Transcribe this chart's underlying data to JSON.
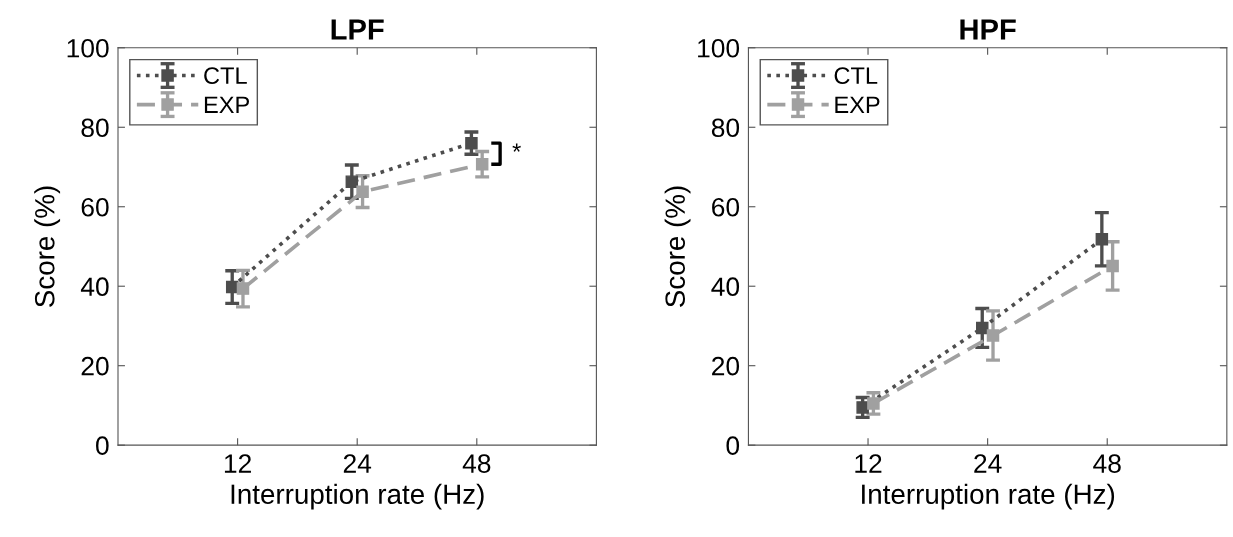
{
  "chart_data": [
    {
      "type": "line",
      "title": "LPF",
      "xlabel": "Interruption rate (Hz)",
      "ylabel": "Score (%)",
      "categories": [
        "12",
        "24",
        "48"
      ],
      "ylim": [
        0,
        100
      ],
      "yticks": [
        0,
        20,
        40,
        60,
        80,
        100
      ],
      "grid": false,
      "legend": "top left",
      "marker": "square",
      "annotations": [
        "*"
      ],
      "series": [
        {
          "name": "CTL",
          "color": "#4d4d4d",
          "line_style": "dotted",
          "values": [
            39.8,
            66.3,
            76.0
          ],
          "errors": [
            4.1,
            4.2,
            2.8
          ]
        },
        {
          "name": "EXP",
          "color": "#a0a0a0",
          "line_style": "dashed",
          "values": [
            39.4,
            63.8,
            70.7
          ],
          "errors": [
            4.6,
            4.0,
            3.2
          ]
        }
      ]
    },
    {
      "type": "line",
      "title": "HPF",
      "xlabel": "Interruption rate (Hz)",
      "ylabel": "Score (%)",
      "categories": [
        "12",
        "24",
        "48"
      ],
      "ylim": [
        0,
        100
      ],
      "yticks": [
        0,
        20,
        40,
        60,
        80,
        100
      ],
      "grid": false,
      "legend": "top left",
      "marker": "square",
      "series": [
        {
          "name": "CTL",
          "color": "#4d4d4d",
          "line_style": "dotted",
          "values": [
            9.5,
            29.5,
            51.8
          ],
          "errors": [
            2.5,
            4.9,
            6.7
          ]
        },
        {
          "name": "EXP",
          "color": "#a0a0a0",
          "line_style": "dashed",
          "values": [
            10.5,
            27.6,
            45.1
          ],
          "errors": [
            2.7,
            6.2,
            6.1
          ]
        }
      ]
    }
  ]
}
